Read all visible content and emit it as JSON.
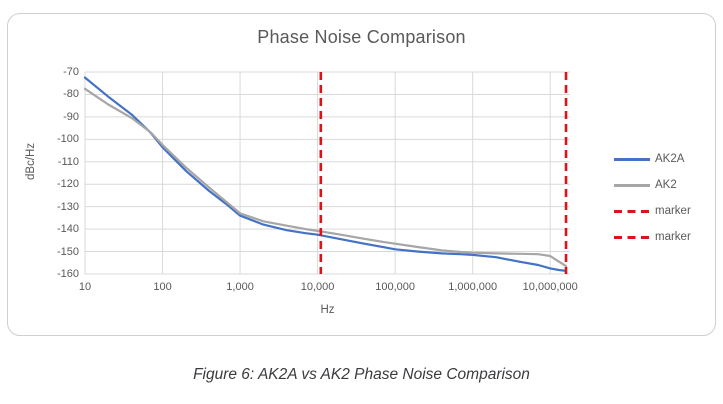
{
  "caption": "Figure 6: AK2A vs AK2 Phase Noise Comparison",
  "chart_data": {
    "type": "line",
    "title": "Phase Noise Comparison",
    "xlabel": "Hz",
    "ylabel": "dBc/Hz",
    "x_scale": "log",
    "xlim": [
      10,
      18000000
    ],
    "ylim": [
      -160,
      -70
    ],
    "grid": true,
    "grid_color": "#d9d9d9",
    "legend_position": "right",
    "y_ticks": [
      -70,
      -80,
      -90,
      -100,
      -110,
      -120,
      -130,
      -140,
      -150,
      -160
    ],
    "x_ticks": [
      {
        "value": 10,
        "label": "10"
      },
      {
        "value": 100,
        "label": "100"
      },
      {
        "value": 1000,
        "label": "1,000"
      },
      {
        "value": 10000,
        "label": "10,000"
      },
      {
        "value": 100000,
        "label": "100,000"
      },
      {
        "value": 1000000,
        "label": "1,000,000"
      },
      {
        "value": 10000000,
        "label": "10,000,000"
      }
    ],
    "x": [
      10,
      20,
      40,
      70,
      100,
      200,
      400,
      700,
      1000,
      2000,
      4000,
      7000,
      10000,
      20000,
      40000,
      70000,
      100000,
      200000,
      400000,
      700000,
      1000000,
      2000000,
      4000000,
      7000000,
      10000000,
      13000000,
      16000000
    ],
    "series": [
      {
        "name": "AK2A",
        "color": "#4472C4",
        "values": [
          -72.5,
          -81,
          -89,
          -97,
          -103.5,
          -114,
          -123,
          -129.5,
          -134,
          -138,
          -140.5,
          -141.8,
          -142.5,
          -144.5,
          -146.5,
          -148,
          -149,
          -150,
          -150.8,
          -151.2,
          -151.5,
          -152.5,
          -154.5,
          -156,
          -157.5,
          -158.2,
          -158.6
        ]
      },
      {
        "name": "AK2",
        "color": "#A6A6A6",
        "values": [
          -77.5,
          -84.5,
          -90.5,
          -96.8,
          -102.5,
          -112.5,
          -121.5,
          -128.5,
          -133,
          -136.5,
          -138.5,
          -140,
          -140.8,
          -142.5,
          -144.3,
          -145.7,
          -146.5,
          -148,
          -149.5,
          -150.2,
          -150.5,
          -150.8,
          -151,
          -151.2,
          -152,
          -154.5,
          -156.5
        ]
      }
    ],
    "markers": [
      {
        "label": "marker",
        "x": 11000,
        "color": "#DE1218",
        "style": "dashed"
      },
      {
        "label": "marker",
        "x": 16000000,
        "color": "#DE1218",
        "style": "dashed"
      }
    ]
  }
}
